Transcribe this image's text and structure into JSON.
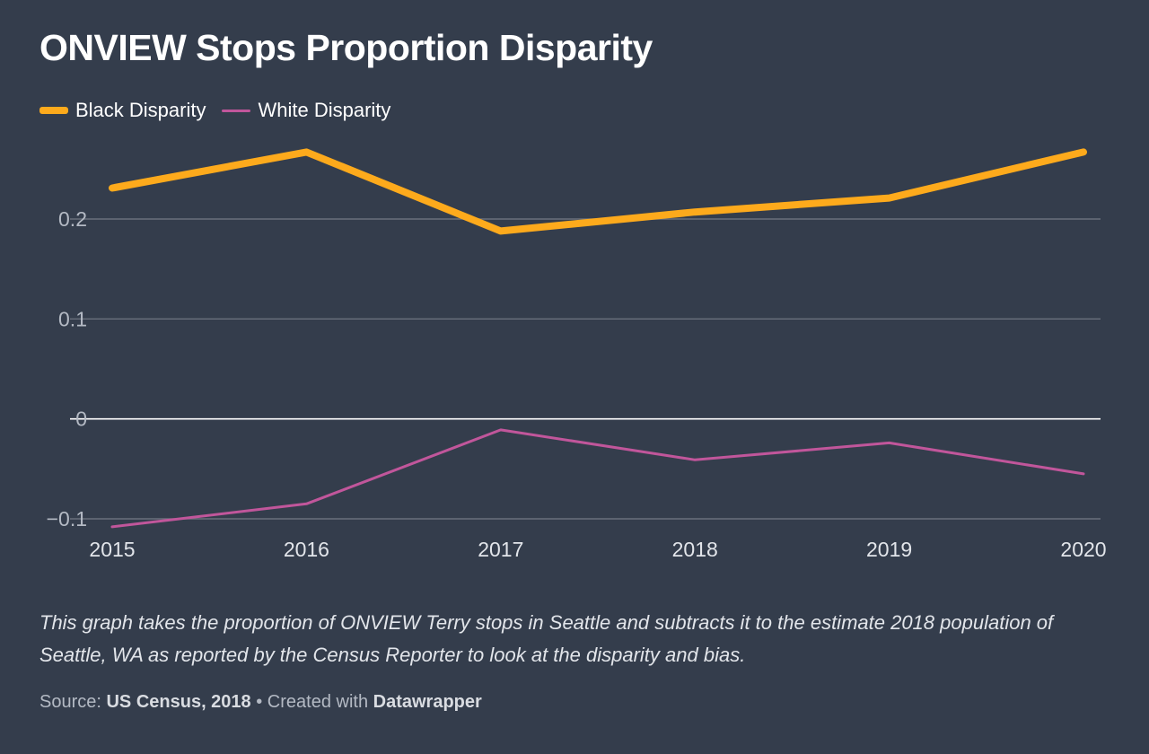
{
  "header": {
    "title": "ONVIEW Stops Proportion Disparity"
  },
  "chart_data": {
    "type": "line",
    "title": "ONVIEW Stops Proportion Disparity",
    "xlabel": "",
    "ylabel": "",
    "x": [
      2015,
      2016,
      2017,
      2018,
      2019,
      2020
    ],
    "x_tick_labels": [
      "2015",
      "2016",
      "2017",
      "2018",
      "2019",
      "2020"
    ],
    "y_ticks": [
      0.2,
      0.1,
      0,
      -0.1
    ],
    "y_tick_labels": [
      "0.2",
      "0.1",
      "0",
      "−0.1"
    ],
    "ylim": [
      -0.1,
      0.3
    ],
    "grid": true,
    "legend_position": "top-left",
    "series": [
      {
        "name": "Black Disparity",
        "color": "#fdaa1c",
        "values": [
          0.231,
          0.267,
          0.188,
          0.207,
          0.221,
          0.267
        ]
      },
      {
        "name": "White Disparity",
        "color": "#c1569b",
        "values": [
          -0.108,
          -0.085,
          -0.011,
          -0.041,
          -0.024,
          -0.055
        ]
      }
    ]
  },
  "note": "This graph takes the proportion of ONVIEW Terry stops in Seattle and subtracts it to the estimate 2018 population of Seattle, WA as reported by the Census Reporter to look at the disparity and bias.",
  "footer": {
    "source_prefix": "Source: ",
    "source_name": "US Census, 2018",
    "separator": " • Created with ",
    "tool": "Datawrapper"
  },
  "colors": {
    "background": "#343d4c",
    "gridline": "#69707c",
    "zero_line": "#ffffff"
  }
}
